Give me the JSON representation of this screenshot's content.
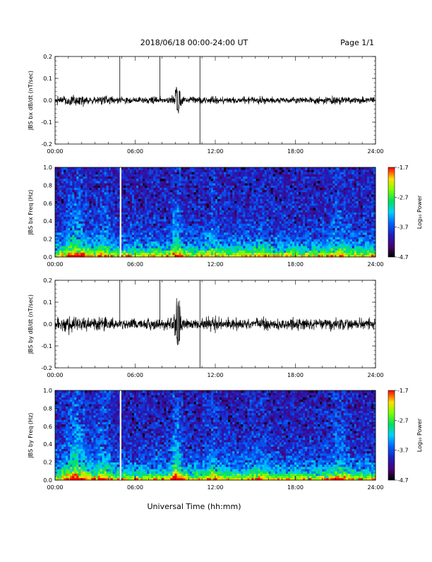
{
  "header": {
    "title": "2018/06/18  00:00-24:00 UT",
    "page": "Page 1/1"
  },
  "footer": {
    "xlabel": "Universal Time (hh:mm)"
  },
  "colorbar": {
    "label": "Log₁₀ Power",
    "ticks": [
      "-1.7",
      "-2.7",
      "-3.7",
      "-4.7"
    ],
    "range": [
      -4.7,
      -1.7
    ]
  },
  "chart_data": [
    {
      "type": "line",
      "ylabel": "JBS bx dB/dt (nT/sec)",
      "xlim": [
        0,
        24
      ],
      "ylim": [
        -0.2,
        0.2
      ],
      "xticks": [
        "00:00",
        "06:00",
        "12:00",
        "18:00",
        "24:00"
      ],
      "yticks": [
        "0.2",
        "0.1",
        "0.0",
        "-0.1",
        "-0.2"
      ],
      "markers_hours": [
        4.85,
        7.85,
        10.85
      ],
      "noise": {
        "baseline": 0.0,
        "amplitude": 0.018,
        "burst_center_hours": 9.2,
        "burst_peak": 0.09,
        "burst_trough": -0.07
      }
    },
    {
      "type": "heatmap",
      "ylabel": "JBS bx Freq (Hz)",
      "xlim": [
        0,
        24
      ],
      "ylim": [
        0,
        1.0
      ],
      "xticks": [
        "00:00",
        "06:00",
        "12:00",
        "18:00",
        "24:00"
      ],
      "yticks": [
        "1.0",
        "0.8",
        "0.6",
        "0.4",
        "0.2",
        "0.0"
      ],
      "gap_hours": 4.9,
      "value_range": [
        -4.7,
        -1.7
      ]
    },
    {
      "type": "line",
      "ylabel": "JBS by dB/dt (nT/sec)",
      "xlim": [
        0,
        24
      ],
      "ylim": [
        -0.2,
        0.2
      ],
      "xticks": [
        "00:00",
        "06:00",
        "12:00",
        "18:00",
        "24:00"
      ],
      "yticks": [
        "0.2",
        "0.1",
        "0.0",
        "-0.1",
        "-0.2"
      ],
      "markers_hours": [
        4.85,
        7.85,
        10.85
      ],
      "noise": {
        "baseline": 0.0,
        "amplitude": 0.03,
        "burst_center_hours": 9.2,
        "burst_peak": 0.14,
        "burst_trough": -0.11
      }
    },
    {
      "type": "heatmap",
      "ylabel": "JBS by Freq (Hz)",
      "xlim": [
        0,
        24
      ],
      "ylim": [
        0,
        1.0
      ],
      "xticks": [
        "00:00",
        "06:00",
        "12:00",
        "18:00",
        "24:00"
      ],
      "yticks": [
        "1.0",
        "0.8",
        "0.6",
        "0.4",
        "0.2",
        "0.0"
      ],
      "gap_hours": 4.9,
      "value_range": [
        -4.7,
        -1.7
      ]
    }
  ]
}
